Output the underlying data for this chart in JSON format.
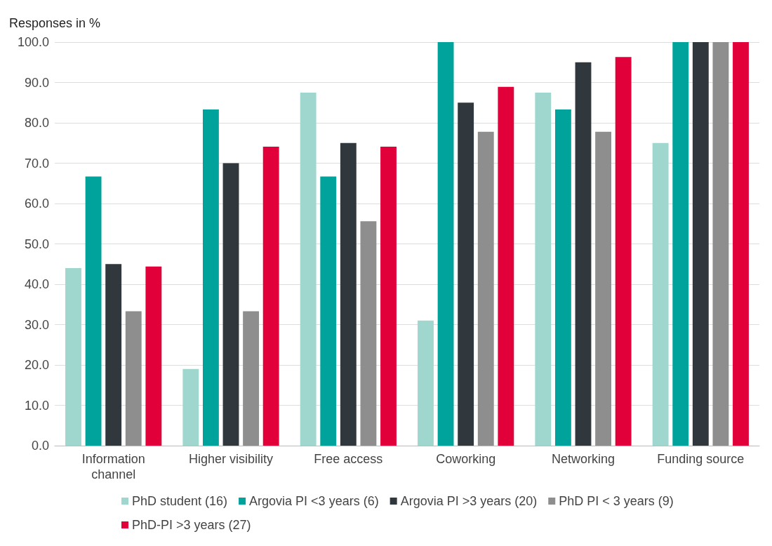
{
  "chart_data": {
    "type": "bar",
    "ylabel": "Responses in %",
    "categories": [
      "Information\nchannel",
      "Higher visibility",
      "Free access",
      "Coworking",
      "Networking",
      "Funding source"
    ],
    "series": [
      {
        "name": "PhD student (16)",
        "color": "#9fd6ce",
        "values": [
          44,
          19,
          87.5,
          31,
          87.5,
          75
        ]
      },
      {
        "name": "Argovia PI <3 years (6)",
        "color": "#00a39b",
        "values": [
          66.7,
          83.3,
          66.7,
          100,
          83.3,
          100
        ]
      },
      {
        "name": "Argovia PI >3 years (20)",
        "color": "#30383e",
        "values": [
          45,
          70,
          75,
          85,
          95,
          100
        ]
      },
      {
        "name": "PhD PI < 3 years (9)",
        "color": "#8e8e8e",
        "values": [
          33.3,
          33.3,
          55.6,
          77.8,
          77.8,
          100
        ]
      },
      {
        "name": "PhD-PI >3 years (27)",
        "color": "#e2003a",
        "values": [
          44.4,
          74.1,
          74.1,
          88.9,
          96.3,
          100
        ]
      }
    ],
    "ylim": [
      0,
      100
    ],
    "yticks": [
      {
        "value": 0,
        "label": "0.0"
      },
      {
        "value": 10,
        "label": "10.0"
      },
      {
        "value": 20,
        "label": "20.0"
      },
      {
        "value": 30,
        "label": "30.0"
      },
      {
        "value": 40,
        "label": "40.0"
      },
      {
        "value": 50,
        "label": "50.0"
      },
      {
        "value": 60,
        "label": "60.0"
      },
      {
        "value": 70,
        "label": "70.0"
      },
      {
        "value": 80,
        "label": "80.0"
      },
      {
        "value": 90,
        "label": "90.0"
      },
      {
        "value": 100,
        "label": "100.0"
      }
    ],
    "grid": "y",
    "legend": "bottom"
  }
}
